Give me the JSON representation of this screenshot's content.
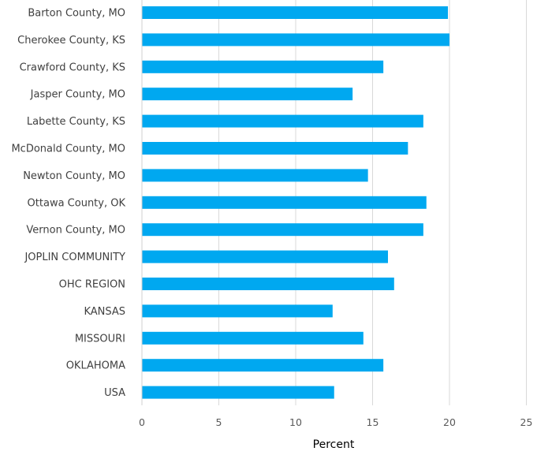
{
  "chart_data": {
    "type": "bar",
    "orientation": "horizontal",
    "categories": [
      "Barton County, MO",
      "Cherokee County, KS",
      "Crawford County, KS",
      "Jasper County, MO",
      "Labette County, KS",
      "McDonald County, MO",
      "Newton County, MO",
      "Ottawa County, OK",
      "Vernon County, MO",
      "JOPLIN COMMUNITY",
      "OHC REGION",
      "KANSAS",
      "MISSOURI",
      "OKLAHOMA",
      "USA"
    ],
    "values": [
      19.9,
      20.0,
      15.7,
      13.7,
      18.3,
      17.3,
      14.7,
      18.5,
      18.3,
      16.0,
      16.4,
      12.4,
      14.4,
      15.7,
      12.5
    ],
    "title": "",
    "xlabel": "Percent",
    "ylabel": "",
    "xlim": [
      0,
      25
    ],
    "xticks": [
      "0",
      "5",
      "10",
      "15",
      "20",
      "25"
    ],
    "grid": "vertical",
    "legend": "none",
    "bar_color": "#00a8f0"
  }
}
